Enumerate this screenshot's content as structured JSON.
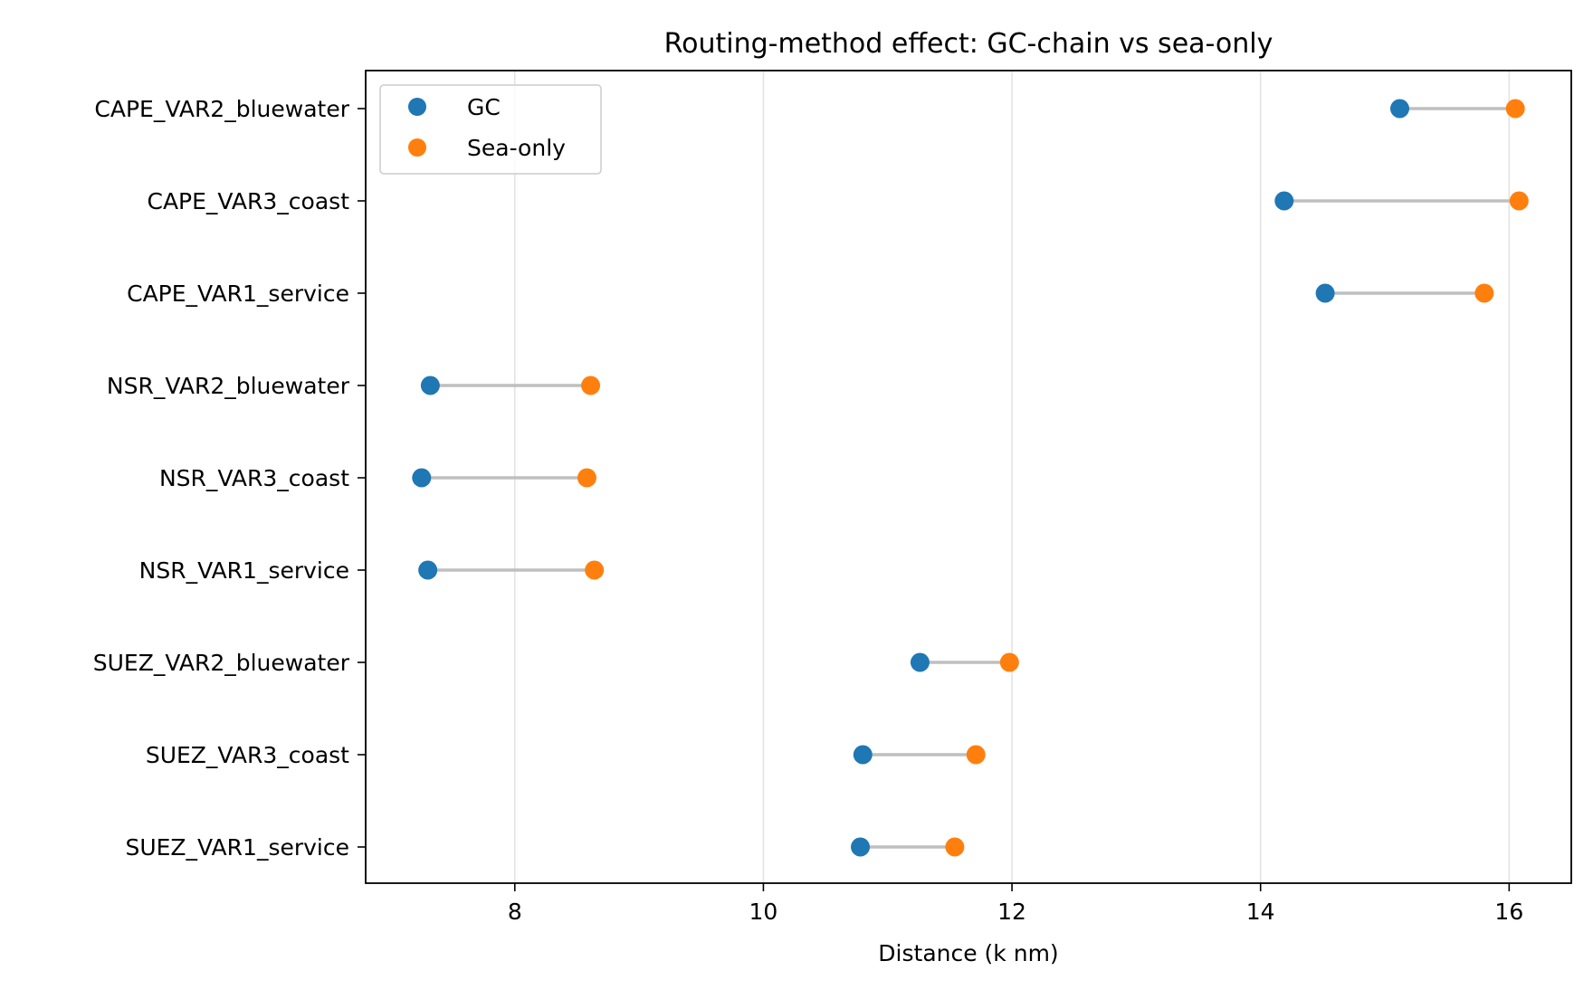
{
  "chart_data": {
    "type": "dumbbell",
    "title": "Routing-method effect: GC-chain vs sea-only",
    "xlabel": "Distance (k nm)",
    "ylabel": "",
    "xlim": [
      6.8,
      16.5
    ],
    "xticks": [
      8,
      10,
      12,
      14,
      16
    ],
    "xtick_labels": [
      "8",
      "10",
      "12",
      "14",
      "16"
    ],
    "grid": "x-major",
    "legend_position": "top-left",
    "categories": [
      "CAPE_VAR2_bluewater",
      "CAPE_VAR3_coast",
      "CAPE_VAR1_service",
      "NSR_VAR2_bluewater",
      "NSR_VAR3_coast",
      "NSR_VAR1_service",
      "SUEZ_VAR2_bluewater",
      "SUEZ_VAR3_coast",
      "SUEZ_VAR1_service"
    ],
    "series": [
      {
        "name": "GC",
        "color": "#1f77b4",
        "values": [
          15.12,
          14.19,
          14.52,
          7.32,
          7.25,
          7.3,
          11.26,
          10.8,
          10.78
        ]
      },
      {
        "name": "Sea-only",
        "color": "#ff7f0e",
        "values": [
          16.05,
          16.08,
          15.8,
          8.61,
          8.58,
          8.64,
          11.98,
          11.71,
          11.54
        ]
      }
    ],
    "connector_color": "#bfbfbf"
  }
}
